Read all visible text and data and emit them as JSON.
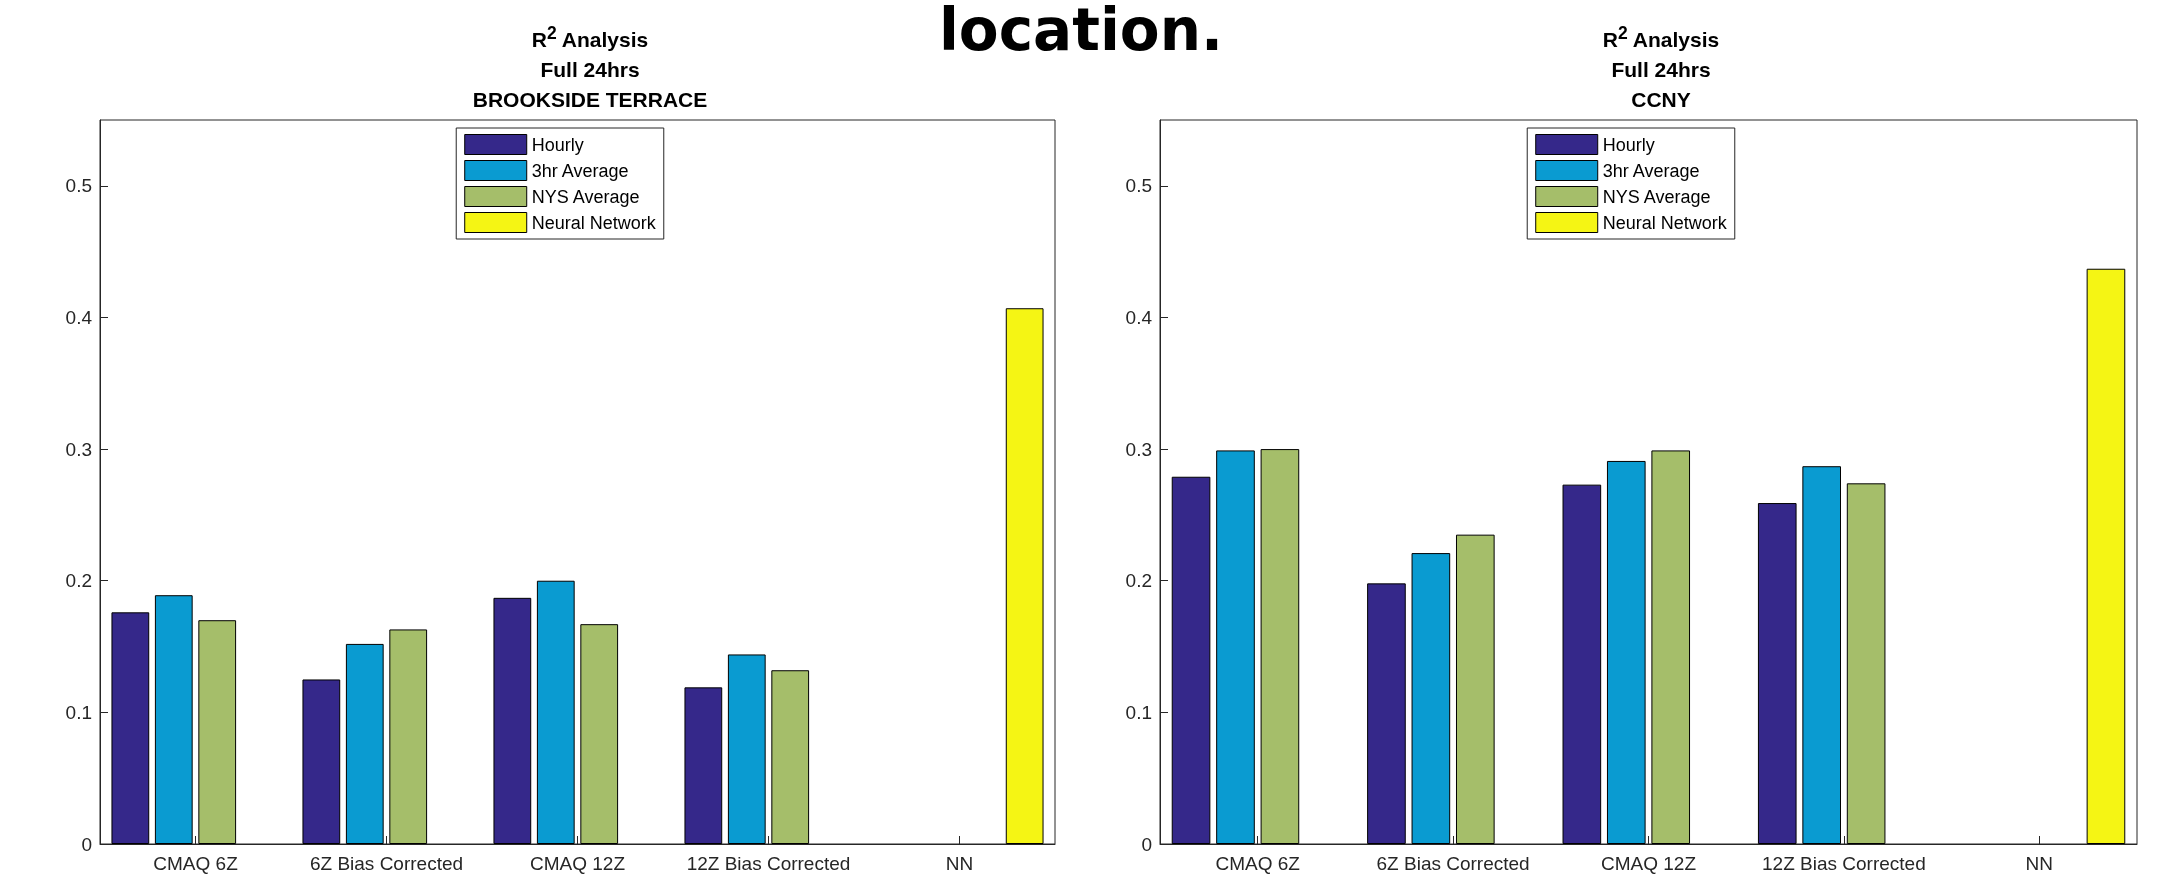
{
  "chart_data": [
    {
      "type": "bar",
      "title": "R$^{2}$ Analysis\nFull 24hrs\nBROOKSIDE TERRACE",
      "annotations": [
        "location."
      ],
      "categories": [
        "CMAQ 6Z",
        "6Z Bias Corrected",
        "CMAQ 12Z",
        "12Z Bias Corrected",
        "NN"
      ],
      "series": [
        {
          "name": "Hourly",
          "color": "#35288a",
          "values": [
            0.176,
            0.125,
            0.187,
            0.119,
            null
          ]
        },
        {
          "name": "3hr Average",
          "color": "#0a9bd1",
          "values": [
            0.189,
            0.152,
            0.2,
            0.144,
            null
          ]
        },
        {
          "name": "NYS Average",
          "color": "#a5be6a",
          "values": [
            0.17,
            0.163,
            0.167,
            0.132,
            null
          ]
        },
        {
          "name": "Neural Network",
          "color": "#f5f514",
          "values": [
            null,
            null,
            null,
            null,
            0.407
          ]
        }
      ],
      "ylim": [
        0,
        0.55
      ],
      "yticks": [
        0,
        0.1,
        0.2,
        0.3,
        0.4,
        0.5
      ],
      "grid": false,
      "legend": "top"
    },
    {
      "type": "bar",
      "title": "R$^{2}$ Analysis\nFull 24hrs\nCCNY",
      "categories": [
        "CMAQ 6Z",
        "6Z Bias Corrected",
        "CMAQ 12Z",
        "12Z Bias Corrected",
        "NN"
      ],
      "series": [
        {
          "name": "Hourly",
          "color": "#35288a",
          "values": [
            0.279,
            0.198,
            0.273,
            0.259,
            null
          ]
        },
        {
          "name": "3hr Average",
          "color": "#0a9bd1",
          "values": [
            0.299,
            0.221,
            0.291,
            0.287,
            null
          ]
        },
        {
          "name": "NYS Average",
          "color": "#a5be6a",
          "values": [
            0.3,
            0.235,
            0.299,
            0.274,
            null
          ]
        },
        {
          "name": "Neural Network",
          "color": "#f5f514",
          "values": [
            null,
            null,
            null,
            null,
            0.437
          ]
        }
      ],
      "ylim": [
        0,
        0.55
      ],
      "yticks": [
        0,
        0.1,
        0.2,
        0.3,
        0.4,
        0.5
      ],
      "grid": false,
      "legend": "top"
    }
  ]
}
